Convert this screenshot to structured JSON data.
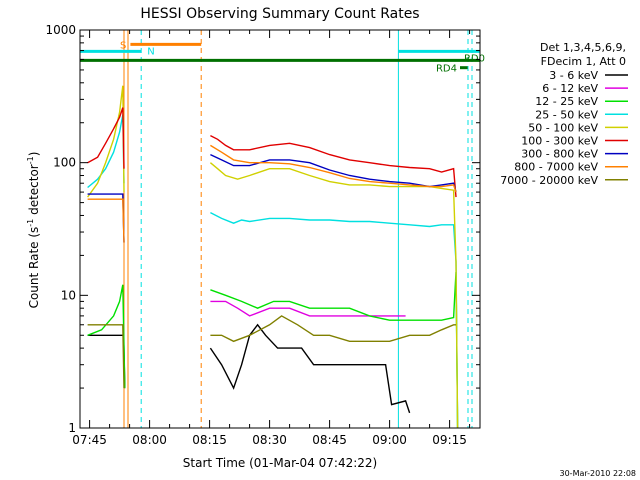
{
  "chart_data": {
    "type": "line",
    "title": "HESSI Observing Summary Count Rates",
    "xlabel": "Start Time (01-Mar-04 07:42:22)",
    "ylabel": "Count Rate (s",
    "ylabel_sup": "-1",
    "ylabel_mid": " detector",
    "ylabel_sup2": "-1",
    "ylabel_end": ")",
    "yscale": "log",
    "xlim_minutes": [
      -2.4,
      97.6
    ],
    "ylim": [
      1,
      1000
    ],
    "xticks": [
      {
        "min": 0,
        "label": "07:45"
      },
      {
        "min": 15,
        "label": "08:00"
      },
      {
        "min": 30,
        "label": "08:15"
      },
      {
        "min": 45,
        "label": "08:30"
      },
      {
        "min": 60,
        "label": "08:45"
      },
      {
        "min": 75,
        "label": "09:00"
      },
      {
        "min": 90,
        "label": "09:15"
      }
    ],
    "yticks": [
      {
        "v": 1,
        "label": "1"
      },
      {
        "v": 10,
        "label": "10"
      },
      {
        "v": 100,
        "label": "100"
      },
      {
        "v": 1000,
        "label": "1000"
      }
    ],
    "legend_header": [
      "Det 1,3,4,5,6,9,",
      "FDecim 1, Att 0"
    ],
    "series": [
      {
        "name": "3 - 6 keV",
        "color": "#000000",
        "points": [
          [
            -0.5,
            5
          ],
          [
            3,
            5
          ],
          [
            6,
            5
          ],
          [
            8.5,
            5
          ],
          [
            8.8,
            2
          ],
          [
            30.2,
            4
          ],
          [
            33,
            3
          ],
          [
            36,
            2
          ],
          [
            38,
            3
          ],
          [
            40,
            5
          ],
          [
            42,
            6
          ],
          [
            44,
            5
          ],
          [
            47,
            4
          ],
          [
            50,
            4
          ],
          [
            53,
            4
          ],
          [
            56,
            3
          ],
          [
            60,
            3
          ],
          [
            63,
            3
          ],
          [
            66,
            3
          ],
          [
            69,
            3
          ],
          [
            72,
            3
          ],
          [
            74,
            3
          ],
          [
            75.5,
            1.5
          ],
          [
            79,
            1.6
          ],
          [
            80,
            1.3
          ]
        ]
      },
      {
        "name": "6 - 12 keV",
        "color": "#e000e0",
        "points": [
          [
            30.2,
            9
          ],
          [
            34,
            9
          ],
          [
            37,
            8
          ],
          [
            40,
            7
          ],
          [
            45,
            8
          ],
          [
            50,
            8
          ],
          [
            55,
            7
          ],
          [
            60,
            7
          ],
          [
            65,
            7
          ],
          [
            70,
            7
          ],
          [
            75,
            7
          ],
          [
            79,
            7
          ]
        ]
      },
      {
        "name": "12 - 25 keV",
        "color": "#00e000",
        "points": [
          [
            -0.5,
            5
          ],
          [
            3,
            5.5
          ],
          [
            6,
            7
          ],
          [
            7.5,
            9
          ],
          [
            8.3,
            12
          ],
          [
            8.8,
            2
          ],
          [
            30.2,
            11
          ],
          [
            34,
            10
          ],
          [
            38,
            9
          ],
          [
            42,
            8
          ],
          [
            46,
            9
          ],
          [
            50,
            9
          ],
          [
            55,
            8
          ],
          [
            60,
            8
          ],
          [
            65,
            8
          ],
          [
            70,
            7
          ],
          [
            75,
            6.5
          ],
          [
            80,
            6.5
          ],
          [
            85,
            6.5
          ],
          [
            88,
            6.5
          ],
          [
            91,
            6.8
          ],
          [
            91.6,
            15
          ],
          [
            92,
            1
          ]
        ]
      },
      {
        "name": "25 - 50 keV",
        "color": "#00e0e0",
        "points": [
          [
            -0.5,
            65
          ],
          [
            2,
            75
          ],
          [
            4,
            90
          ],
          [
            6,
            120
          ],
          [
            7.5,
            170
          ],
          [
            8.3,
            230
          ],
          [
            8.6,
            70
          ],
          [
            30.2,
            42
          ],
          [
            33,
            38
          ],
          [
            36,
            35
          ],
          [
            38,
            37
          ],
          [
            40,
            36
          ],
          [
            45,
            38
          ],
          [
            50,
            38
          ],
          [
            55,
            37
          ],
          [
            60,
            37
          ],
          [
            65,
            36
          ],
          [
            70,
            36
          ],
          [
            75,
            35
          ],
          [
            80,
            34
          ],
          [
            85,
            33
          ],
          [
            88,
            34
          ],
          [
            91,
            34
          ],
          [
            91.6,
            18
          ],
          [
            92,
            1
          ]
        ]
      },
      {
        "name": "50 - 100 keV",
        "color": "#d0d000",
        "points": [
          [
            -0.5,
            55
          ],
          [
            2,
            70
          ],
          [
            4,
            100
          ],
          [
            6,
            150
          ],
          [
            7.5,
            240
          ],
          [
            8.3,
            380
          ],
          [
            8.6,
            60
          ],
          [
            30.2,
            100
          ],
          [
            32,
            90
          ],
          [
            34,
            80
          ],
          [
            37,
            75
          ],
          [
            40,
            80
          ],
          [
            45,
            90
          ],
          [
            50,
            90
          ],
          [
            55,
            80
          ],
          [
            60,
            72
          ],
          [
            65,
            68
          ],
          [
            70,
            68
          ],
          [
            75,
            66
          ],
          [
            80,
            66
          ],
          [
            85,
            66
          ],
          [
            88,
            64
          ],
          [
            91,
            62
          ],
          [
            91.6,
            18
          ],
          [
            92,
            1
          ]
        ]
      },
      {
        "name": "100 - 300 keV",
        "color": "#e00000",
        "points": [
          [
            -0.5,
            100
          ],
          [
            2,
            110
          ],
          [
            4,
            140
          ],
          [
            6,
            180
          ],
          [
            7.5,
            220
          ],
          [
            8.3,
            260
          ],
          [
            8.6,
            90
          ],
          [
            30.2,
            160
          ],
          [
            32,
            150
          ],
          [
            34,
            135
          ],
          [
            36,
            125
          ],
          [
            40,
            125
          ],
          [
            45,
            135
          ],
          [
            50,
            140
          ],
          [
            55,
            130
          ],
          [
            60,
            115
          ],
          [
            65,
            105
          ],
          [
            70,
            100
          ],
          [
            75,
            95
          ],
          [
            80,
            92
          ],
          [
            85,
            90
          ],
          [
            88,
            85
          ],
          [
            91,
            90
          ],
          [
            91.6,
            55
          ]
        ]
      },
      {
        "name": "300 - 800 keV",
        "color": "#0000c0",
        "points": [
          [
            -0.5,
            58
          ],
          [
            3,
            58
          ],
          [
            6,
            58
          ],
          [
            8.3,
            58
          ],
          [
            8.6,
            25
          ],
          [
            30.2,
            115
          ],
          [
            33,
            105
          ],
          [
            36,
            95
          ],
          [
            40,
            95
          ],
          [
            45,
            105
          ],
          [
            50,
            105
          ],
          [
            55,
            100
          ],
          [
            60,
            88
          ],
          [
            65,
            80
          ],
          [
            70,
            75
          ],
          [
            75,
            72
          ],
          [
            80,
            70
          ],
          [
            85,
            66
          ],
          [
            88,
            68
          ],
          [
            91,
            70
          ],
          [
            91.6,
            60
          ]
        ]
      },
      {
        "name": "800 - 7000 keV",
        "color": "#ff8000",
        "points": [
          [
            -0.5,
            53
          ],
          [
            3,
            53
          ],
          [
            6,
            53
          ],
          [
            8.3,
            53
          ],
          [
            8.6,
            25
          ],
          [
            30.2,
            135
          ],
          [
            33,
            120
          ],
          [
            36,
            105
          ],
          [
            40,
            100
          ],
          [
            45,
            100
          ],
          [
            50,
            98
          ],
          [
            55,
            92
          ],
          [
            60,
            84
          ],
          [
            65,
            76
          ],
          [
            70,
            72
          ],
          [
            75,
            70
          ],
          [
            80,
            68
          ],
          [
            85,
            66
          ],
          [
            88,
            66
          ],
          [
            91,
            68
          ],
          [
            91.6,
            60
          ]
        ]
      },
      {
        "name": "7000 - 20000 keV",
        "color": "#808000",
        "points": [
          [
            -0.5,
            6
          ],
          [
            3,
            6
          ],
          [
            6,
            6
          ],
          [
            8.3,
            6
          ],
          [
            8.6,
            2
          ],
          [
            30.2,
            5
          ],
          [
            33,
            5
          ],
          [
            36,
            4.5
          ],
          [
            40,
            5
          ],
          [
            45,
            6
          ],
          [
            48,
            7
          ],
          [
            52,
            6
          ],
          [
            56,
            5
          ],
          [
            60,
            5
          ],
          [
            65,
            4.5
          ],
          [
            70,
            4.5
          ],
          [
            75,
            4.5
          ],
          [
            80,
            5
          ],
          [
            85,
            5
          ],
          [
            88,
            5.5
          ],
          [
            91,
            6
          ],
          [
            91.6,
            6
          ]
        ]
      }
    ],
    "event_bars": [
      {
        "label": "S",
        "color": "#ff8000",
        "start_min": 10.2,
        "end_min": 27.9,
        "level": 780
      },
      {
        "label": "N",
        "color": "#00e0e0",
        "start_min": -2.4,
        "end_min": 12.9,
        "level": 690
      },
      {
        "label": "",
        "color": "#00e0e0",
        "start_min": 77.2,
        "end_min": 97.6,
        "level": 690
      },
      {
        "label": "RD0",
        "color": "#007000",
        "start_min": -2.4,
        "end_min": 97.6,
        "level": 590
      },
      {
        "label": "RD4",
        "color": "#007000",
        "start_min": 92.6,
        "end_min": 94.5,
        "level": 520
      }
    ],
    "vlines": [
      {
        "min": 8.6,
        "color": "#ff8000",
        "style": "solid"
      },
      {
        "min": 9.6,
        "color": "#ff8000",
        "style": "solid"
      },
      {
        "min": 12.9,
        "color": "#00e0e0",
        "style": "dashed"
      },
      {
        "min": 27.9,
        "color": "#ff8000",
        "style": "dashed"
      },
      {
        "min": 77.2,
        "color": "#00e0e0",
        "style": "solid"
      },
      {
        "min": 94.6,
        "color": "#00e0e0",
        "style": "dashed"
      },
      {
        "min": 95.6,
        "color": "#00e0e0",
        "style": "dashed"
      }
    ],
    "timestamp": "30-Mar-2010 22:08"
  }
}
